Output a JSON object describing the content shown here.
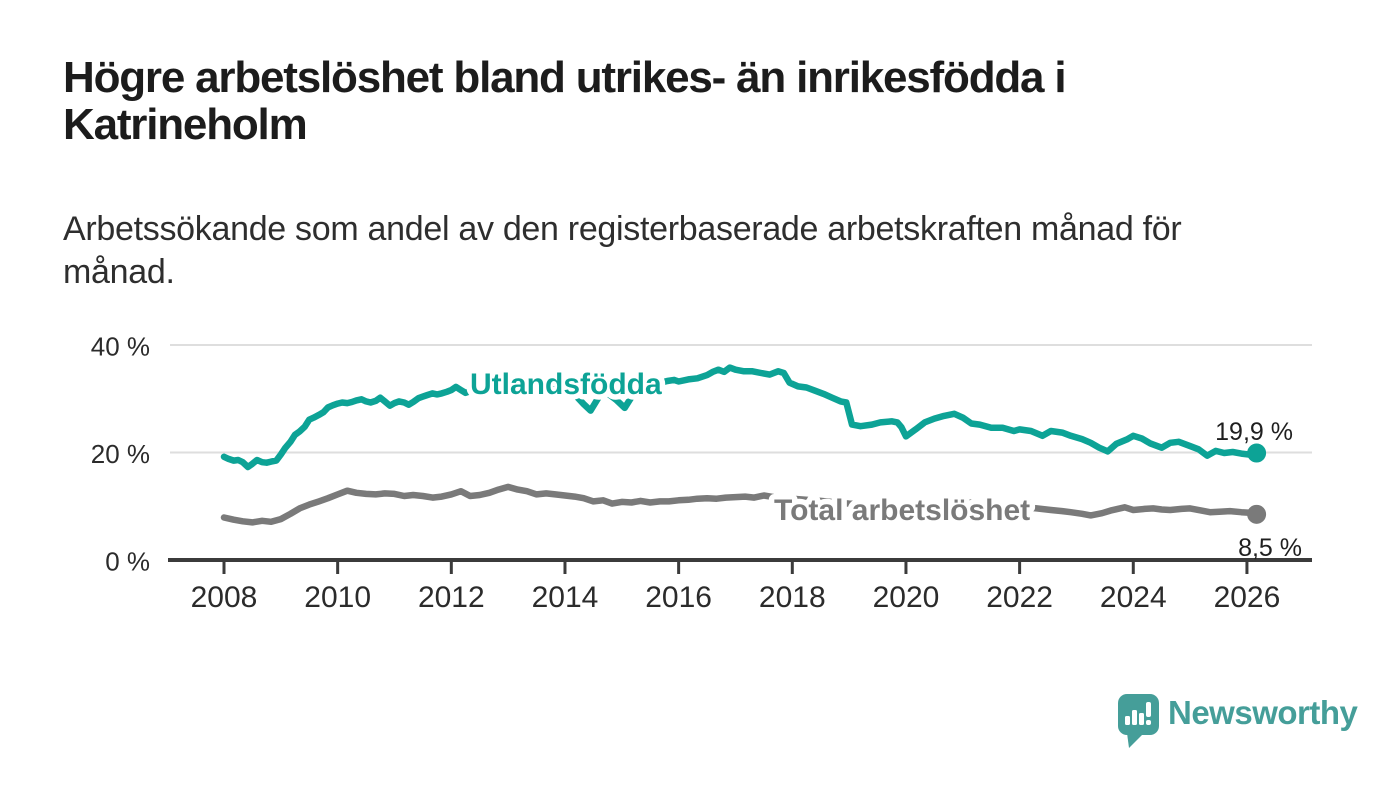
{
  "header": {
    "title_lines": [
      "Högre arbetslöshet bland utrikes- än inrikesfödda i",
      "Katrineholm"
    ],
    "subtitle_lines": [
      "Arbetssökande som andel av den registerbaserade arbetskraften månad för",
      "månad."
    ]
  },
  "chart_data": {
    "type": "line",
    "title": "Högre arbetslöshet bland utrikes- än inrikesfödda i Katrineholm",
    "subtitle": "Arbetssökande som andel av den registerbaserade arbetskraften månad för månad.",
    "xlabel": "",
    "ylabel": "",
    "xlim": [
      2007.05,
      2027.1
    ],
    "ylim": [
      0,
      42
    ],
    "grid": "horizontal",
    "legend_position": "inline-labels",
    "x_axis": {
      "ticks": [
        2008,
        2010,
        2012,
        2014,
        2016,
        2018,
        2020,
        2022,
        2024,
        2026
      ]
    },
    "y_axis": {
      "ticks": [
        {
          "value": 0,
          "label": "0 %"
        },
        {
          "value": 20,
          "label": "20 %"
        },
        {
          "value": 40,
          "label": "40 %"
        }
      ]
    },
    "series": [
      {
        "name": "Utlandsfödda",
        "color": "#0da396",
        "end_label": "19,9 %",
        "end_value": 19.9,
        "points": [
          [
            2008,
            19.2
          ],
          [
            2008.08,
            18.8
          ],
          [
            2008.17,
            18.5
          ],
          [
            2008.25,
            18.6
          ],
          [
            2008.33,
            18.2
          ],
          [
            2008.42,
            17.3
          ],
          [
            2008.5,
            17.9
          ],
          [
            2008.58,
            18.6
          ],
          [
            2008.67,
            18.2
          ],
          [
            2008.75,
            18.1
          ],
          [
            2008.83,
            18.3
          ],
          [
            2008.92,
            18.5
          ],
          [
            2009,
            19.6
          ],
          [
            2009.08,
            20.9
          ],
          [
            2009.17,
            22
          ],
          [
            2009.25,
            23.3
          ],
          [
            2009.33,
            23.9
          ],
          [
            2009.42,
            24.8
          ],
          [
            2009.5,
            26.1
          ],
          [
            2009.58,
            26.5
          ],
          [
            2009.67,
            27
          ],
          [
            2009.75,
            27.5
          ],
          [
            2009.83,
            28.4
          ],
          [
            2009.92,
            28.8
          ],
          [
            2010,
            29.1
          ],
          [
            2010.08,
            29.3
          ],
          [
            2010.17,
            29.2
          ],
          [
            2010.25,
            29.4
          ],
          [
            2010.33,
            29.7
          ],
          [
            2010.42,
            29.9
          ],
          [
            2010.5,
            29.5
          ],
          [
            2010.58,
            29.3
          ],
          [
            2010.67,
            29.6
          ],
          [
            2010.75,
            30.2
          ],
          [
            2010.83,
            29.5
          ],
          [
            2010.92,
            28.7
          ],
          [
            2011,
            29.2
          ],
          [
            2011.08,
            29.5
          ],
          [
            2011.17,
            29.3
          ],
          [
            2011.25,
            28.9
          ],
          [
            2011.33,
            29.4
          ],
          [
            2011.42,
            30.1
          ],
          [
            2011.5,
            30.4
          ],
          [
            2011.58,
            30.7
          ],
          [
            2011.67,
            31
          ],
          [
            2011.75,
            30.8
          ],
          [
            2011.83,
            31
          ],
          [
            2011.92,
            31.3
          ],
          [
            2012,
            31.6
          ],
          [
            2012.08,
            32.2
          ],
          [
            2012.17,
            31.6
          ],
          [
            2012.25,
            31.1
          ],
          [
            2012.33,
            31.4
          ],
          [
            2012.42,
            30.9
          ],
          [
            2012.5,
            31.2
          ],
          [
            2012.58,
            31.4
          ],
          [
            2012.67,
            31.8
          ],
          [
            2012.75,
            32.1
          ],
          [
            2012.83,
            32.4
          ],
          [
            2012.92,
            32.2
          ],
          [
            2013,
            32
          ],
          [
            2013.17,
            32.3
          ],
          [
            2013.33,
            32.1
          ],
          [
            2013.5,
            32.4
          ],
          [
            2013.67,
            32.2
          ],
          [
            2013.83,
            32
          ],
          [
            2014,
            31.6
          ],
          [
            2014.17,
            30.8
          ],
          [
            2014.33,
            29
          ],
          [
            2014.45,
            27.8
          ],
          [
            2014.6,
            30.4
          ],
          [
            2014.75,
            31
          ],
          [
            2014.9,
            29.8
          ],
          [
            2015.05,
            28.3
          ],
          [
            2015.2,
            30.8
          ],
          [
            2015.35,
            31.8
          ],
          [
            2015.5,
            32.4
          ],
          [
            2015.65,
            32.9
          ],
          [
            2015.8,
            33.3
          ],
          [
            2015.92,
            33.5
          ],
          [
            2016,
            33.2
          ],
          [
            2016.17,
            33.6
          ],
          [
            2016.33,
            33.8
          ],
          [
            2016.5,
            34.4
          ],
          [
            2016.6,
            35
          ],
          [
            2016.7,
            35.4
          ],
          [
            2016.8,
            35
          ],
          [
            2016.9,
            35.8
          ],
          [
            2017,
            35.4
          ],
          [
            2017.15,
            35.1
          ],
          [
            2017.3,
            35.1
          ],
          [
            2017.45,
            34.8
          ],
          [
            2017.6,
            34.5
          ],
          [
            2017.75,
            35.1
          ],
          [
            2017.85,
            34.8
          ],
          [
            2017.95,
            33
          ],
          [
            2018.1,
            32.3
          ],
          [
            2018.25,
            32.1
          ],
          [
            2018.4,
            31.5
          ],
          [
            2018.55,
            30.9
          ],
          [
            2018.7,
            30.2
          ],
          [
            2018.85,
            29.5
          ],
          [
            2018.95,
            29.3
          ],
          [
            2019.05,
            25.2
          ],
          [
            2019.2,
            24.9
          ],
          [
            2019.4,
            25.2
          ],
          [
            2019.55,
            25.6
          ],
          [
            2019.75,
            25.8
          ],
          [
            2019.85,
            25.6
          ],
          [
            2019.92,
            24.7
          ],
          [
            2020,
            23
          ],
          [
            2020.17,
            24.3
          ],
          [
            2020.33,
            25.6
          ],
          [
            2020.5,
            26.3
          ],
          [
            2020.67,
            26.8
          ],
          [
            2020.85,
            27.2
          ],
          [
            2021,
            26.5
          ],
          [
            2021.15,
            25.4
          ],
          [
            2021.3,
            25.2
          ],
          [
            2021.5,
            24.6
          ],
          [
            2021.7,
            24.6
          ],
          [
            2021.9,
            24
          ],
          [
            2022,
            24.3
          ],
          [
            2022.2,
            24
          ],
          [
            2022.4,
            23.1
          ],
          [
            2022.55,
            24
          ],
          [
            2022.75,
            23.7
          ],
          [
            2022.9,
            23.1
          ],
          [
            2023.1,
            22.5
          ],
          [
            2023.25,
            21.8
          ],
          [
            2023.4,
            20.9
          ],
          [
            2023.55,
            20.2
          ],
          [
            2023.7,
            21.6
          ],
          [
            2023.9,
            22.5
          ],
          [
            2024,
            23.1
          ],
          [
            2024.15,
            22.6
          ],
          [
            2024.3,
            21.7
          ],
          [
            2024.5,
            20.9
          ],
          [
            2024.65,
            21.8
          ],
          [
            2024.8,
            22
          ],
          [
            2025,
            21.2
          ],
          [
            2025.15,
            20.6
          ],
          [
            2025.3,
            19.4
          ],
          [
            2025.45,
            20.3
          ],
          [
            2025.6,
            19.9
          ],
          [
            2025.75,
            20.1
          ],
          [
            2025.9,
            19.8
          ],
          [
            2026.05,
            19.6
          ],
          [
            2026.17,
            19.9
          ]
        ]
      },
      {
        "name": "Total arbetslöshet",
        "color": "#7a7a7a",
        "end_label": "8,5 %",
        "end_value": 8.5,
        "points": [
          [
            2008,
            7.9
          ],
          [
            2008.17,
            7.5
          ],
          [
            2008.33,
            7.2
          ],
          [
            2008.5,
            7
          ],
          [
            2008.67,
            7.3
          ],
          [
            2008.83,
            7.1
          ],
          [
            2009,
            7.6
          ],
          [
            2009.17,
            8.6
          ],
          [
            2009.33,
            9.6
          ],
          [
            2009.5,
            10.3
          ],
          [
            2009.67,
            10.9
          ],
          [
            2009.83,
            11.5
          ],
          [
            2010,
            12.2
          ],
          [
            2010.17,
            12.9
          ],
          [
            2010.33,
            12.5
          ],
          [
            2010.5,
            12.3
          ],
          [
            2010.67,
            12.2
          ],
          [
            2010.83,
            12.4
          ],
          [
            2011,
            12.3
          ],
          [
            2011.17,
            11.9
          ],
          [
            2011.33,
            12.1
          ],
          [
            2011.5,
            11.9
          ],
          [
            2011.67,
            11.6
          ],
          [
            2011.83,
            11.8
          ],
          [
            2012,
            12.2
          ],
          [
            2012.17,
            12.8
          ],
          [
            2012.33,
            11.9
          ],
          [
            2012.5,
            12.1
          ],
          [
            2012.67,
            12.5
          ],
          [
            2012.83,
            13.1
          ],
          [
            2013,
            13.6
          ],
          [
            2013.17,
            13.1
          ],
          [
            2013.33,
            12.8
          ],
          [
            2013.5,
            12.2
          ],
          [
            2013.67,
            12.4
          ],
          [
            2013.83,
            12.2
          ],
          [
            2014,
            12
          ],
          [
            2014.17,
            11.8
          ],
          [
            2014.33,
            11.5
          ],
          [
            2014.5,
            10.9
          ],
          [
            2014.67,
            11.1
          ],
          [
            2014.83,
            10.5
          ],
          [
            2015,
            10.8
          ],
          [
            2015.17,
            10.7
          ],
          [
            2015.33,
            11
          ],
          [
            2015.5,
            10.7
          ],
          [
            2015.67,
            10.9
          ],
          [
            2015.83,
            10.9
          ],
          [
            2016,
            11.1
          ],
          [
            2016.17,
            11.2
          ],
          [
            2016.33,
            11.4
          ],
          [
            2016.5,
            11.5
          ],
          [
            2016.67,
            11.4
          ],
          [
            2016.83,
            11.6
          ],
          [
            2017,
            11.7
          ],
          [
            2017.17,
            11.8
          ],
          [
            2017.33,
            11.6
          ],
          [
            2017.5,
            12
          ],
          [
            2017.67,
            11.7
          ],
          [
            2018,
            11.4
          ],
          [
            2018.5,
            11
          ],
          [
            2019,
            10.5
          ],
          [
            2019.5,
            10.3
          ],
          [
            2020,
            10.1
          ],
          [
            2020.5,
            10.6
          ],
          [
            2021,
            10.8
          ],
          [
            2021.5,
            10.3
          ],
          [
            2022,
            9.9
          ],
          [
            2022.3,
            9.6
          ],
          [
            2022.55,
            9.3
          ],
          [
            2022.75,
            9.1
          ],
          [
            2022.9,
            8.9
          ],
          [
            2023.1,
            8.6
          ],
          [
            2023.25,
            8.3
          ],
          [
            2023.45,
            8.7
          ],
          [
            2023.6,
            9.2
          ],
          [
            2023.85,
            9.8
          ],
          [
            2024,
            9.3
          ],
          [
            2024.2,
            9.5
          ],
          [
            2024.35,
            9.6
          ],
          [
            2024.5,
            9.4
          ],
          [
            2024.65,
            9.3
          ],
          [
            2024.85,
            9.5
          ],
          [
            2025,
            9.6
          ],
          [
            2025.2,
            9.2
          ],
          [
            2025.35,
            8.9
          ],
          [
            2025.55,
            9
          ],
          [
            2025.7,
            9.1
          ],
          [
            2025.9,
            8.9
          ],
          [
            2026.05,
            8.8
          ],
          [
            2026.17,
            8.5
          ]
        ]
      }
    ]
  },
  "footer": {
    "brand": "Newsworthy"
  },
  "colors": {
    "accent_teal": "#0da396",
    "series_gray": "#7a7a7a",
    "logo_teal": "#459e99",
    "axis": "#3b3b3b",
    "grid": "#dedede",
    "text_dark": "#1c1c1c",
    "value_label": "#1f1f1f"
  }
}
